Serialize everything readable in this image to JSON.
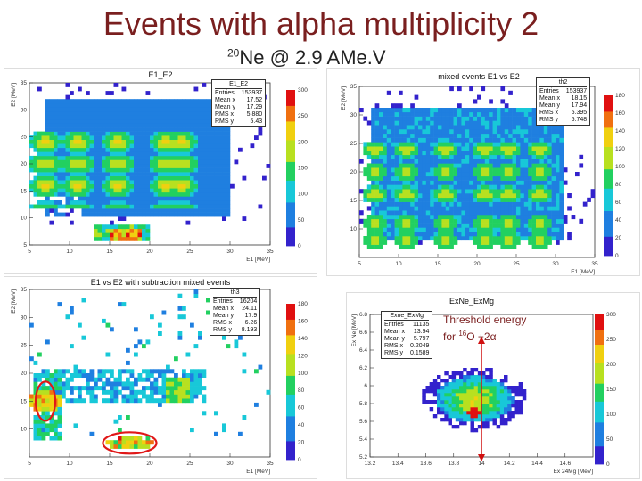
{
  "title": "Events with alpha multiplicity 2",
  "subtitle": {
    "mass": "20",
    "rest": "Ne @ 2.9 AMe.V"
  },
  "annotation": {
    "line1": "Threshold energy",
    "line2_pre": "for ",
    "mass": "16",
    "line2_post": "O +2α"
  },
  "chart_data": [
    {
      "type": "heatmap",
      "title": "E1_E2",
      "xlabel": "E1 [MeV]",
      "ylabel": "E2 [MeV]",
      "xlim": [
        5,
        35
      ],
      "ylim": [
        5,
        35
      ],
      "xticks": [
        5,
        10,
        15,
        20,
        25,
        30,
        35
      ],
      "yticks": [
        5,
        10,
        15,
        20,
        25,
        30,
        35
      ],
      "zticks": [
        0,
        50,
        100,
        150,
        200,
        250,
        300
      ],
      "stats": {
        "name": "E1_E2",
        "rows": [
          [
            "Entries",
            "153937"
          ],
          [
            "Mean x",
            "17.52"
          ],
          [
            "Mean y",
            "17.29"
          ],
          [
            "RMS x",
            "5.880"
          ],
          [
            "RMS y",
            "5.43"
          ]
        ]
      },
      "hotspots_x": [
        7,
        11,
        16,
        22,
        24
      ],
      "hotspots_y": [
        7,
        11,
        16,
        20,
        24
      ]
    },
    {
      "type": "heatmap",
      "title": "mixed events E1 vs E2",
      "xlabel": "E1 [MeV]",
      "ylabel": "E2 [MeV]",
      "xlim": [
        5,
        35
      ],
      "ylim": [
        5,
        35
      ],
      "xticks": [
        5,
        10,
        15,
        20,
        25,
        30,
        35
      ],
      "yticks": [
        10,
        15,
        20,
        25,
        30,
        35
      ],
      "zticks": [
        0,
        20,
        40,
        60,
        80,
        100,
        120,
        140,
        160,
        180
      ],
      "stats": {
        "name": "th2",
        "rows": [
          [
            "Entries",
            "153937"
          ],
          [
            "Mean x",
            "18.15"
          ],
          [
            "Mean y",
            "17.94"
          ],
          [
            "RMS x",
            "5.395"
          ],
          [
            "RMS y",
            "5.748"
          ]
        ]
      },
      "hotspots_x": [
        7,
        11,
        16,
        21,
        24,
        28
      ],
      "hotspots_y": [
        8,
        11,
        16,
        20,
        24,
        29
      ]
    },
    {
      "type": "heatmap",
      "title": "E1 vs E2 with subtraction mixed events",
      "xlabel": "E1 [MeV]",
      "ylabel": "E2 [MeV]",
      "xlim": [
        5,
        35
      ],
      "ylim": [
        5,
        35
      ],
      "xticks": [
        5,
        10,
        15,
        20,
        25,
        30,
        35
      ],
      "yticks": [
        10,
        15,
        20,
        25,
        30,
        35
      ],
      "zticks": [
        0,
        20,
        40,
        60,
        80,
        100,
        120,
        140,
        160,
        180
      ],
      "stats": {
        "name": "th3",
        "rows": [
          [
            "Entries",
            "16204"
          ],
          [
            "Mean x",
            "24.11"
          ],
          [
            "Mean y",
            "17.9"
          ],
          [
            "RMS x",
            "6.26"
          ],
          [
            "RMS y",
            "8.193"
          ]
        ]
      },
      "circled_regions": [
        {
          "x": 7,
          "y": 15
        },
        {
          "x": 17.5,
          "y": 7.5
        }
      ]
    },
    {
      "type": "heatmap",
      "title": "ExNe_ExMg",
      "xlabel": "Ex 24Mg [MeV]",
      "ylabel": "Ex Ne [MeV]",
      "xlim": [
        13.2,
        14.8
      ],
      "ylim": [
        5.2,
        6.8
      ],
      "xticks": [
        13.2,
        13.4,
        13.6,
        13.8,
        14.0,
        14.2,
        14.4,
        14.6
      ],
      "yticks": [
        5.2,
        5.4,
        5.6,
        5.8,
        6.0,
        6.2,
        6.4,
        6.6,
        6.8
      ],
      "zticks": [
        0,
        50,
        100,
        150,
        200,
        250,
        300
      ],
      "stats": {
        "name": "Exne_ExMg",
        "rows": [
          [
            "Entries",
            "11135"
          ],
          [
            "Mean x",
            "13.94"
          ],
          [
            "Mean y",
            "5.797"
          ],
          [
            "RMS x",
            "0.2049"
          ],
          [
            "RMS y",
            "0.1589"
          ]
        ]
      },
      "threshold_x": 14.0
    }
  ]
}
